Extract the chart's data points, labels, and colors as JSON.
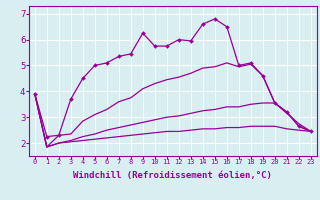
{
  "background_color": "#d8eef0",
  "grid_color": "#ffffff",
  "line_color": "#990099",
  "xlabel": "Windchill (Refroidissement éolien,°C)",
  "xlabel_fontsize": 6.5,
  "xtick_fontsize": 5.0,
  "ytick_fontsize": 6.5,
  "ylim": [
    1.5,
    7.3
  ],
  "xlim": [
    -0.5,
    23.5
  ],
  "yticks": [
    2,
    3,
    4,
    5,
    6,
    7
  ],
  "xticks": [
    0,
    1,
    2,
    3,
    4,
    5,
    6,
    7,
    8,
    9,
    10,
    11,
    12,
    13,
    14,
    15,
    16,
    17,
    18,
    19,
    20,
    21,
    22,
    23
  ],
  "series_top": [
    3.9,
    2.25,
    2.3,
    3.7,
    4.5,
    5.0,
    5.1,
    5.35,
    5.45,
    6.25,
    5.75,
    5.75,
    6.0,
    5.95,
    6.6,
    6.8,
    6.5,
    5.0,
    5.1,
    4.6,
    3.55,
    3.2,
    2.65,
    2.45
  ],
  "series_mid1": [
    3.9,
    1.85,
    2.3,
    2.35,
    2.85,
    3.1,
    3.3,
    3.6,
    3.75,
    4.1,
    4.3,
    4.45,
    4.55,
    4.7,
    4.9,
    4.95,
    5.1,
    4.95,
    5.05,
    4.6,
    3.55,
    3.2,
    2.65,
    2.45
  ],
  "series_mid2": [
    3.9,
    1.85,
    2.0,
    2.1,
    2.25,
    2.35,
    2.5,
    2.6,
    2.7,
    2.8,
    2.9,
    3.0,
    3.05,
    3.15,
    3.25,
    3.3,
    3.4,
    3.4,
    3.5,
    3.55,
    3.55,
    3.15,
    2.75,
    2.45
  ],
  "series_bot": [
    3.9,
    1.85,
    2.0,
    2.05,
    2.1,
    2.15,
    2.2,
    2.25,
    2.3,
    2.35,
    2.4,
    2.45,
    2.45,
    2.5,
    2.55,
    2.55,
    2.6,
    2.6,
    2.65,
    2.65,
    2.65,
    2.55,
    2.5,
    2.45
  ]
}
